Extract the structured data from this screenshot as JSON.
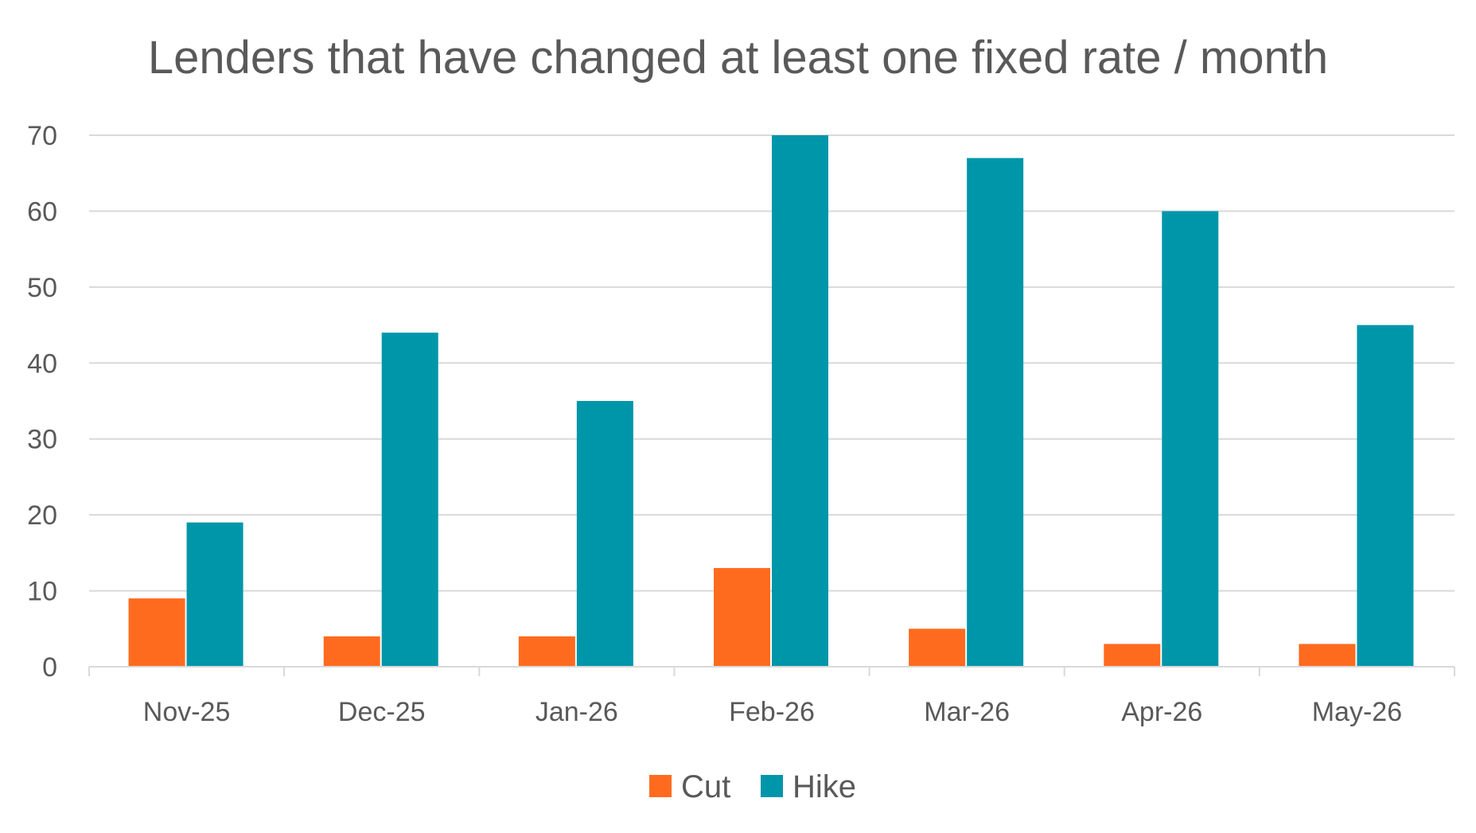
{
  "chart_data": {
    "type": "bar",
    "title": "Lenders that have changed at least one fixed rate / month",
    "xlabel": "",
    "ylabel": "",
    "categories": [
      "Nov-25",
      "Dec-25",
      "Jan-26",
      "Feb-26",
      "Mar-26",
      "Apr-26",
      "May-26"
    ],
    "series": [
      {
        "name": "Cut",
        "color": "#FF6B1E",
        "values": [
          9,
          4,
          4,
          13,
          5,
          3,
          3
        ]
      },
      {
        "name": "Hike",
        "color": "#0096AA",
        "values": [
          19,
          44,
          35,
          70,
          67,
          60,
          45
        ]
      }
    ],
    "ylim": [
      0,
      70
    ],
    "yticks": [
      0,
      10,
      20,
      30,
      40,
      50,
      60,
      70
    ],
    "grid": true,
    "legend_position": "bottom"
  }
}
